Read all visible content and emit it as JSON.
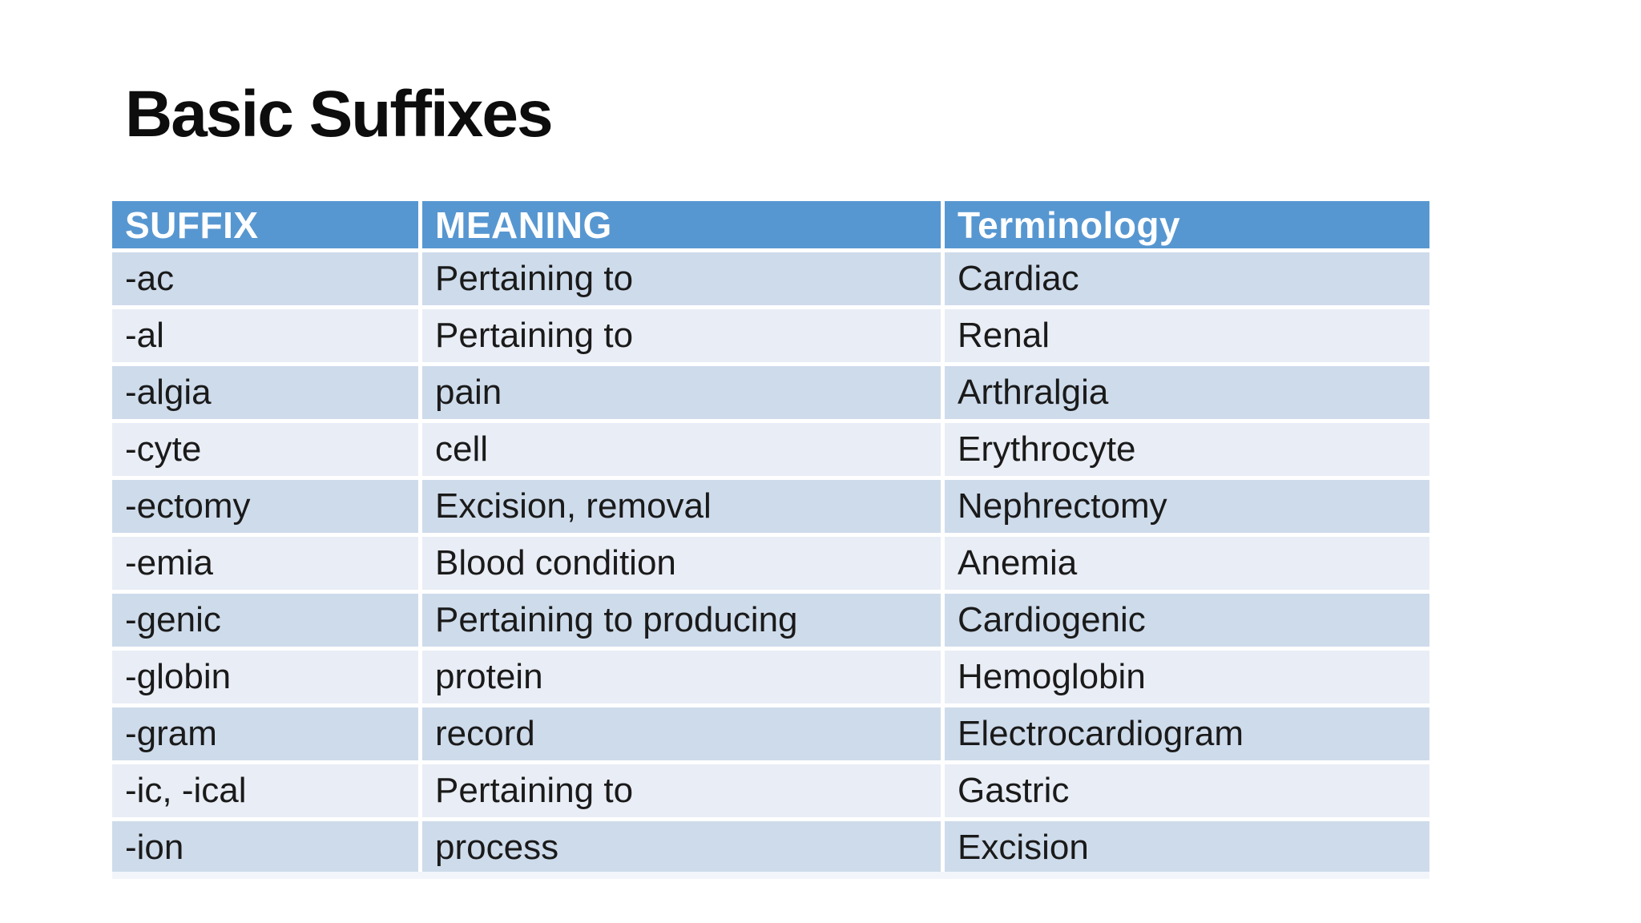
{
  "slide": {
    "title": "Basic Suffixes"
  },
  "table": {
    "headers": [
      "SUFFIX",
      "MEANING",
      "Terminology"
    ],
    "rows": [
      {
        "suffix": "-ac",
        "meaning": "Pertaining to",
        "terminology": "Cardiac"
      },
      {
        "suffix": "-al",
        "meaning": "Pertaining to",
        "terminology": "Renal"
      },
      {
        "suffix": "-algia",
        "meaning": "pain",
        "terminology": "Arthralgia"
      },
      {
        "suffix": "-cyte",
        "meaning": "cell",
        "terminology": "Erythrocyte"
      },
      {
        "suffix": "-ectomy",
        "meaning": "Excision, removal",
        "terminology": "Nephrectomy"
      },
      {
        "suffix": "-emia",
        "meaning": "Blood condition",
        "terminology": "Anemia"
      },
      {
        "suffix": "-genic",
        "meaning": "Pertaining to producing",
        "terminology": "Cardiogenic"
      },
      {
        "suffix": "-globin",
        "meaning": "protein",
        "terminology": "Hemoglobin"
      },
      {
        "suffix": "-gram",
        "meaning": "record",
        "terminology": "Electrocardiogram"
      },
      {
        "suffix": "-ic, -ical",
        "meaning": "Pertaining to",
        "terminology": "Gastric"
      },
      {
        "suffix": "-ion",
        "meaning": "process",
        "terminology": "Excision"
      }
    ]
  },
  "colors": {
    "page_bg": "#ffffff",
    "title_color": "#0d0d0d",
    "header_bg": "#5797d1",
    "header_text": "#ffffff",
    "band_dark": "#cedbeb",
    "band_light": "#e9edf5",
    "band_faint": "#f2f6fb",
    "cell_text": "#1a1a1a"
  }
}
